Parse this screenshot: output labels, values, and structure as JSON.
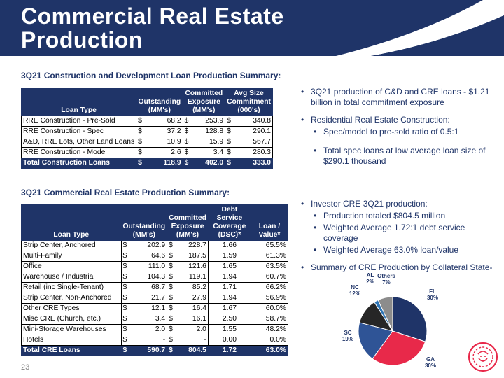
{
  "slide": {
    "title_line1": "Commercial Real Estate",
    "title_line2": "Production",
    "page_number": "23"
  },
  "table1": {
    "heading": "3Q21 Construction and Development Loan Production Summary:",
    "headers": [
      "Loan Type",
      "Outstanding (MM's)",
      "Committed Exposure (MM's)",
      "Avg Size Commitment (000's)"
    ],
    "rows": [
      [
        "RRE Construction - Pre-Sold",
        "68.2",
        "253.9",
        "340.8"
      ],
      [
        "RRE Construction - Spec",
        "37.2",
        "128.8",
        "290.1"
      ],
      [
        "A&D, RRE Lots, Other Land Loans",
        "10.9",
        "15.9",
        "567.7"
      ],
      [
        "RRE Construction - Model",
        "2.6",
        "3.4",
        "280.3"
      ]
    ],
    "total": [
      "Total Construction Loans",
      "118.9",
      "402.0",
      "333.0"
    ]
  },
  "table2": {
    "heading": "3Q21 Commercial Real Estate Production Summary:",
    "headers": [
      "Loan Type",
      "Outstanding (MM's)",
      "Committed Exposure (MM's)",
      "Debt Service Coverage (DSC)*",
      "Loan / Value*"
    ],
    "rows": [
      [
        "Strip Center, Anchored",
        "202.9",
        "228.7",
        "1.66",
        "65.5%"
      ],
      [
        "Multi-Family",
        "64.6",
        "187.5",
        "1.59",
        "61.3%"
      ],
      [
        "Office",
        "111.0",
        "121.6",
        "1.65",
        "63.5%"
      ],
      [
        "Warehouse / Industrial",
        "104.3",
        "119.1",
        "1.94",
        "60.7%"
      ],
      [
        "Retail (inc Single-Tenant)",
        "68.7",
        "85.2",
        "1.71",
        "66.2%"
      ],
      [
        "Strip Center, Non-Anchored",
        "21.7",
        "27.9",
        "1.94",
        "56.9%"
      ],
      [
        "Other CRE Types",
        "12.1",
        "16.4",
        "1.67",
        "60.0%"
      ],
      [
        "Misc CRE (Church, etc.)",
        "3.4",
        "16.1",
        "2.50",
        "58.7%"
      ],
      [
        "Mini-Storage Warehouses",
        "2.0",
        "2.0",
        "1.55",
        "48.2%"
      ],
      [
        "Hotels",
        "-",
        "-",
        "0.00",
        "0.0%"
      ]
    ],
    "total": [
      "Total CRE Loans",
      "590.7",
      "804.5",
      "1.72",
      "63.0%"
    ]
  },
  "currency_symbol": "$",
  "bullets_top": {
    "b1": "3Q21 production of C&D and CRE loans - $1.21 billion in total commitment exposure",
    "b2": "Residential Real Estate Construction:",
    "b2a": "Spec/model to pre-sold ratio of 0.5:1",
    "b2b": "Total spec loans at low average loan size of $290.1 thousand"
  },
  "bullets_bottom": {
    "b1": "Investor CRE 3Q21 production:",
    "b1a": "Production totaled $804.5 million",
    "b1b": "Weighted Average 1.72:1 debt service coverage",
    "b1c": "Weighted Average 63.0% loan/value",
    "b2": "Summary of CRE Production by Collateral State-"
  },
  "chart_data": {
    "type": "pie",
    "categories": [
      "FL",
      "GA",
      "SC",
      "NC",
      "AL",
      "Others"
    ],
    "values": [
      30,
      30,
      19,
      12,
      2,
      7
    ],
    "labels": [
      "30%",
      "30%",
      "19%",
      "12%",
      "2%",
      "7%"
    ],
    "colors": [
      "#1f3468",
      "#e8294a",
      "#2f5496",
      "#262626",
      "#2e75b6",
      "#8c8c8c"
    ]
  }
}
